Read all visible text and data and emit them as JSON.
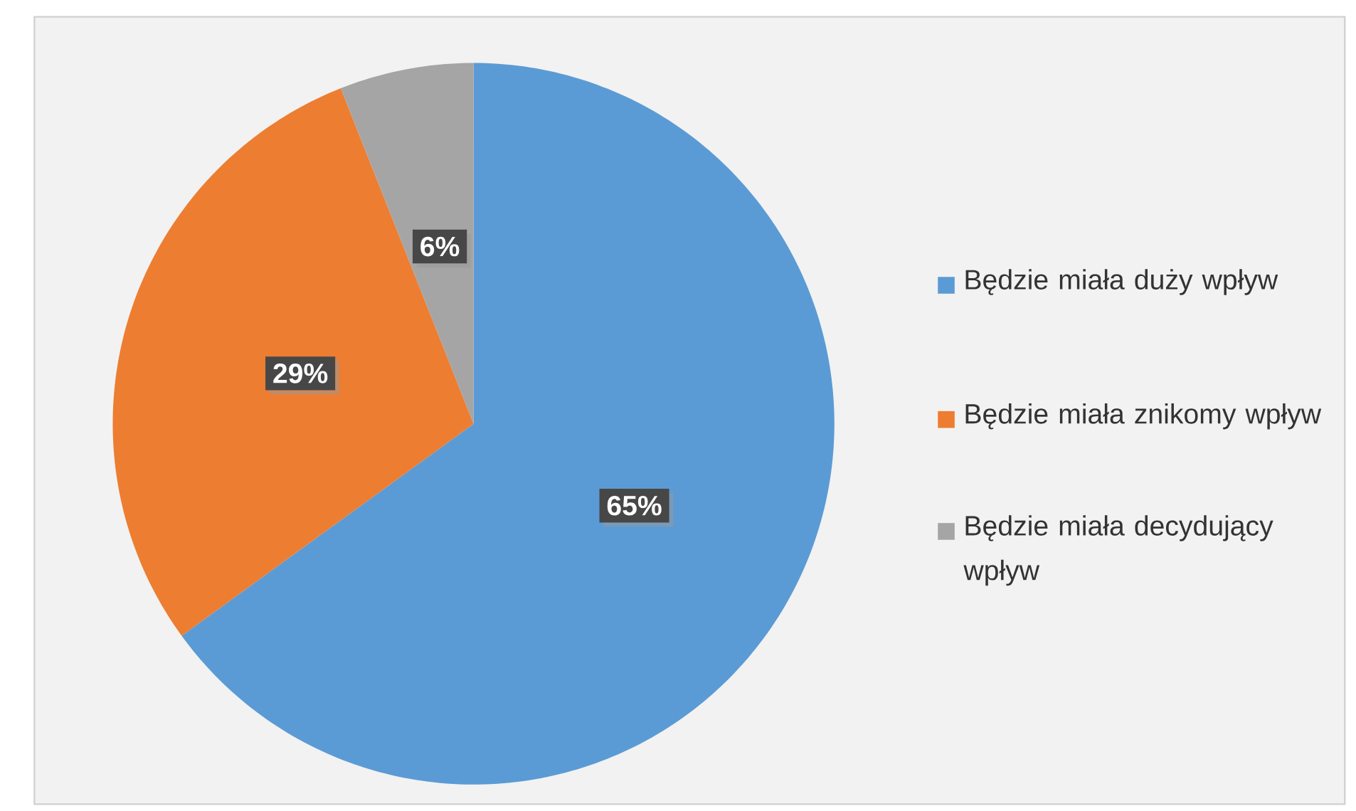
{
  "chart_data": {
    "type": "pie",
    "categories": [
      "Będzie miała duży wpływ",
      "Będzie miała znikomy wpływ",
      "Będzie miała decydujący wpływ"
    ],
    "values": [
      65,
      29,
      6
    ],
    "colors": [
      "#5b9bd5",
      "#ed7d31",
      "#a5a5a5"
    ],
    "value_labels": [
      "65%",
      "29%",
      "6%"
    ],
    "legend": "right"
  }
}
